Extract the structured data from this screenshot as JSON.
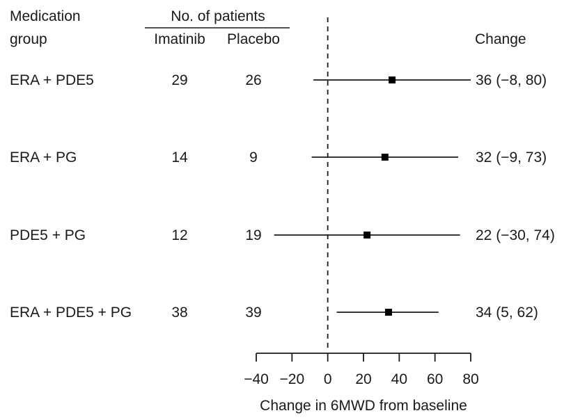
{
  "chart_data": {
    "type": "forest",
    "headers": {
      "group_line1": "Medication",
      "group_line2": "group",
      "patients": "No. of patients",
      "imatinib": "Imatinib",
      "placebo": "Placebo",
      "change": "Change"
    },
    "rows": [
      {
        "group": "ERA + PDE5",
        "imatinib": "29",
        "placebo": "26",
        "estimate": 36,
        "lower": -8,
        "upper": 80,
        "label": "36 (−8, 80)"
      },
      {
        "group": "ERA + PG",
        "imatinib": "14",
        "placebo": "9",
        "estimate": 32,
        "lower": -9,
        "upper": 73,
        "label": "32 (−9, 73)"
      },
      {
        "group": "PDE5 + PG",
        "imatinib": "12",
        "placebo": "19",
        "estimate": 22,
        "lower": -30,
        "upper": 74,
        "label": "22 (−30, 74)"
      },
      {
        "group": "ERA + PDE5 + PG",
        "imatinib": "38",
        "placebo": "39",
        "estimate": 34,
        "lower": 5,
        "upper": 62,
        "label": "34 (5, 62)"
      }
    ],
    "xaxis": {
      "ticks": [
        -40,
        -20,
        0,
        20,
        40,
        60,
        80
      ],
      "tick_labels": [
        "−40",
        "−20",
        "0",
        "20",
        "40",
        "60",
        "80"
      ],
      "range": [
        -40,
        80
      ],
      "label": "Change in 6MWD from baseline"
    },
    "reference_line": 0
  }
}
